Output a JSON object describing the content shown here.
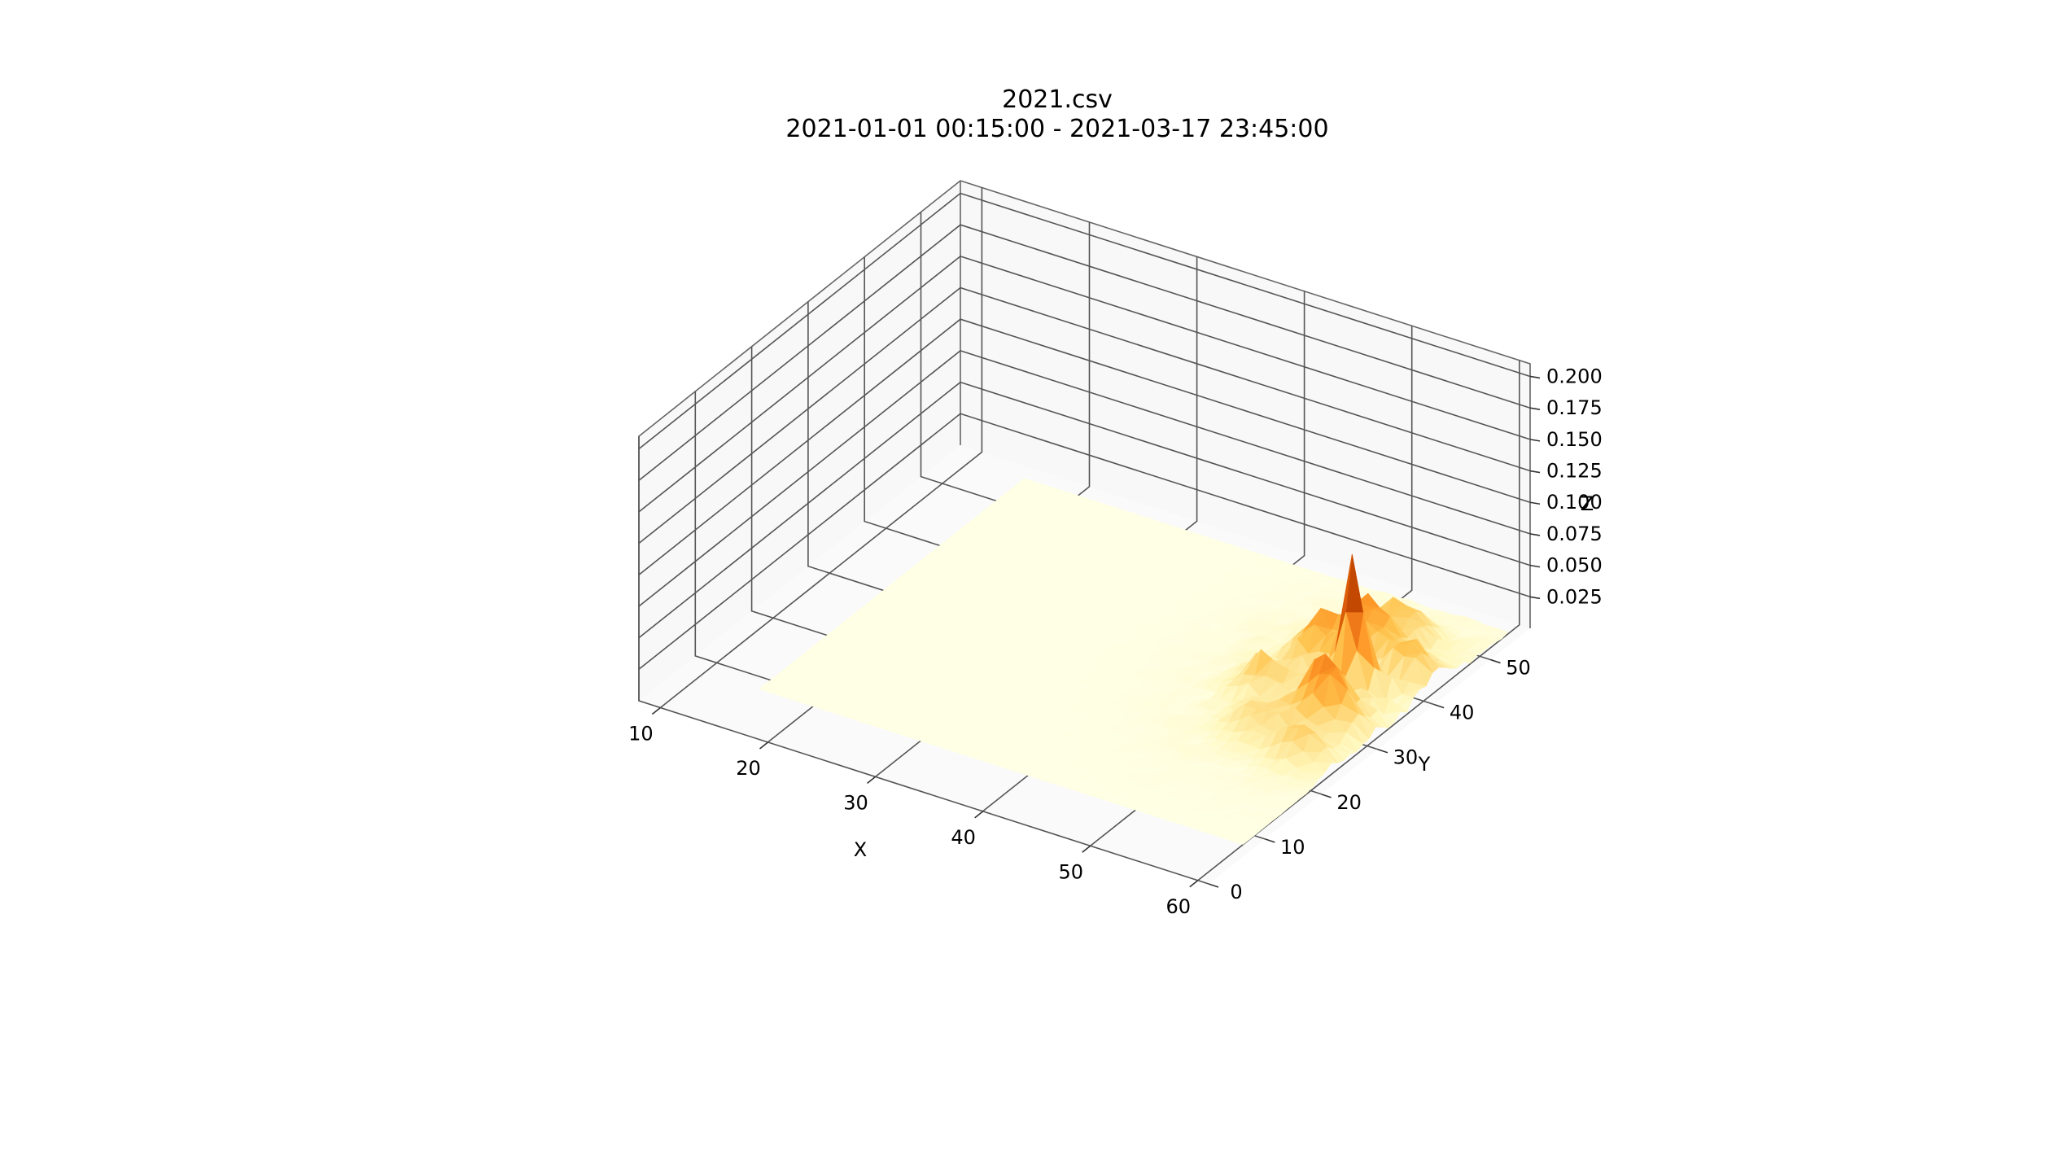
{
  "chart_data": {
    "type": "surface3d",
    "title": "2021.csv",
    "subtitle": "2021-01-01 00:15:00 - 2021-03-17 23:45:00",
    "xlabel": "X",
    "ylabel": "Y",
    "zlabel": "Z",
    "x_ticks": [
      "10",
      "20",
      "30",
      "40",
      "50",
      "60"
    ],
    "y_ticks": [
      "0",
      "10",
      "20",
      "30",
      "40",
      "50"
    ],
    "z_ticks": [
      "0.025",
      "0.050",
      "0.075",
      "0.100",
      "0.125",
      "0.150",
      "0.175",
      "0.200"
    ],
    "xlim": [
      8,
      61
    ],
    "ylim": [
      0,
      57
    ],
    "zlim": [
      0.0,
      0.21
    ],
    "grid": true,
    "colormap": "YlOrBr",
    "colormap_stops": [
      "#ffffe5",
      "#fff7bc",
      "#fee391",
      "#fec44f",
      "#fe9929",
      "#ec7014",
      "#cc4c02",
      "#8c2d04",
      "#662506"
    ],
    "surface_extent": {
      "x": [
        15,
        60
      ],
      "y": [
        8,
        55
      ]
    },
    "peaks": [
      {
        "x": 55,
        "y": 37,
        "z": 0.11
      },
      {
        "x": 56,
        "y": 30,
        "z": 0.05
      },
      {
        "x": 53,
        "y": 43,
        "z": 0.04
      },
      {
        "x": 51,
        "y": 39,
        "z": 0.035
      },
      {
        "x": 54,
        "y": 48,
        "z": 0.03
      },
      {
        "x": 49,
        "y": 33,
        "z": 0.025
      },
      {
        "x": 58,
        "y": 42,
        "z": 0.03
      },
      {
        "x": 57,
        "y": 24,
        "z": 0.025
      },
      {
        "x": 52,
        "y": 26,
        "z": 0.02
      }
    ]
  }
}
